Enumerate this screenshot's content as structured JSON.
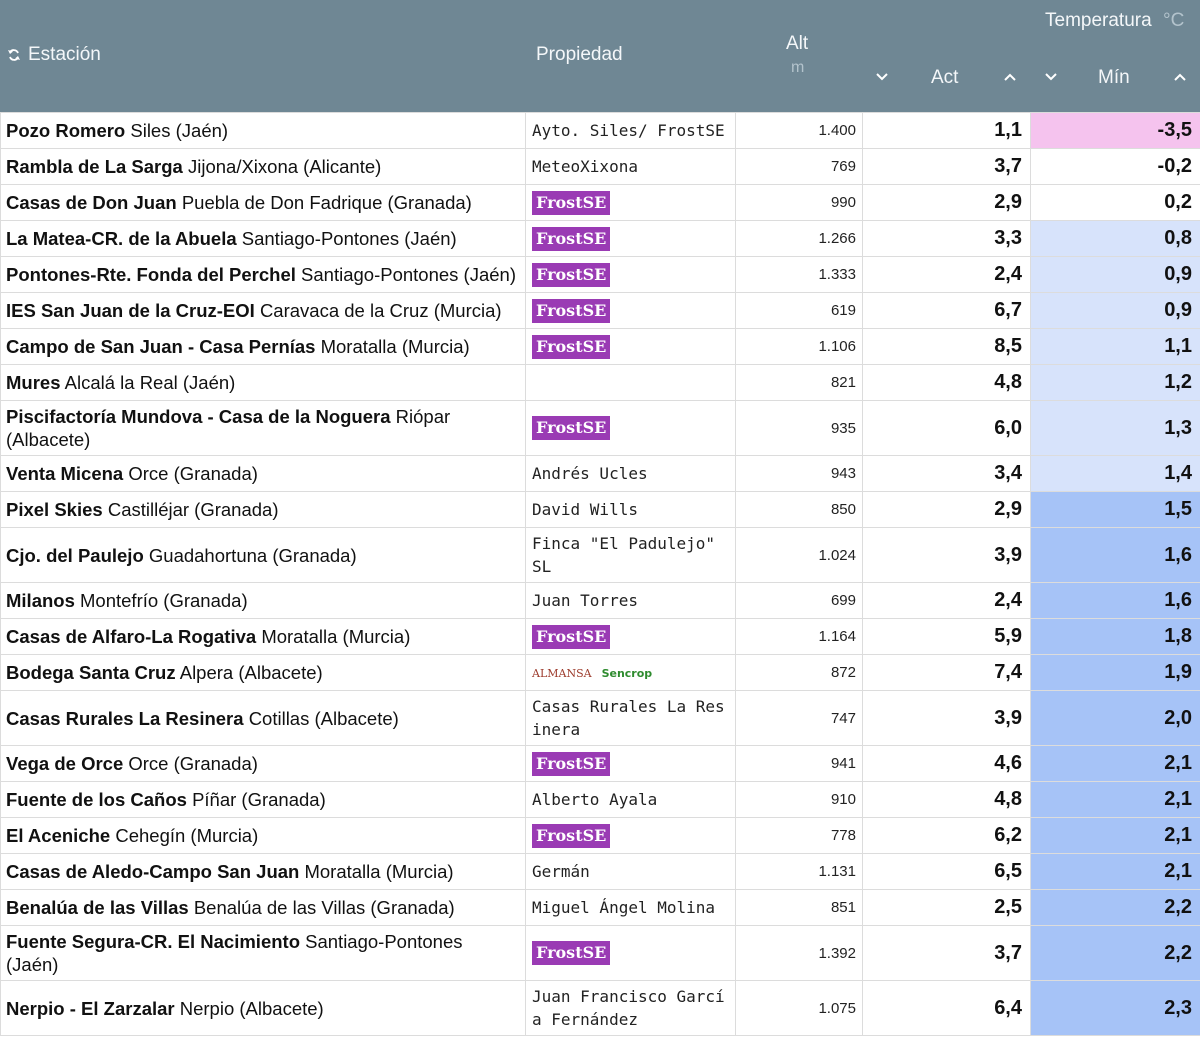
{
  "header": {
    "station": "Estación",
    "property": "Propiedad",
    "alt": "Alt",
    "alt_unit": "m",
    "temperature": "Temperatura",
    "temperature_unit": "°C",
    "act": "Act",
    "min": "Mín"
  },
  "table": {
    "rows": [
      {
        "name": "Pozo Romero",
        "location": "Siles (Jaén)",
        "property": {
          "text": "Ayto. Siles/ FrostSE"
        },
        "alt": "1.400",
        "act": "1,1",
        "min": "-3,5",
        "min_color": "#f5c3ee"
      },
      {
        "name": "Rambla de La Sarga",
        "location": "Jijona/Xixona (Alicante)",
        "property": {
          "text": "MeteoXixona"
        },
        "alt": "769",
        "act": "3,7",
        "min": "-0,2",
        "min_color": "#ffffff"
      },
      {
        "name": "Casas de Don Juan",
        "location": "Puebla de Don Fadrique (Granada)",
        "property": {
          "logos": [
            "FrostSE"
          ]
        },
        "alt": "990",
        "act": "2,9",
        "min": "0,2",
        "min_color": "#ffffff"
      },
      {
        "name": "La Matea-CR. de la Abuela",
        "location": "Santiago-Pontones (Jaén)",
        "property": {
          "logos": [
            "FrostSE"
          ]
        },
        "alt": "1.266",
        "act": "3,3",
        "min": "0,8",
        "min_color": "#d7e3fb"
      },
      {
        "name": "Pontones-Rte. Fonda del Perchel",
        "location": "Santiago-Pontones (Jaén)",
        "property": {
          "logos": [
            "FrostSE"
          ]
        },
        "alt": "1.333",
        "act": "2,4",
        "min": "0,9",
        "min_color": "#d7e3fb"
      },
      {
        "name": "IES San Juan de la Cruz-EOI",
        "location": "Caravaca de la Cruz (Murcia)",
        "property": {
          "logos": [
            "FrostSE"
          ]
        },
        "alt": "619",
        "act": "6,7",
        "min": "0,9",
        "min_color": "#d7e3fb"
      },
      {
        "name": "Campo de San Juan - Casa Pernías",
        "location": "Moratalla (Murcia)",
        "property": {
          "logos": [
            "FrostSE"
          ]
        },
        "alt": "1.106",
        "act": "8,5",
        "min": "1,1",
        "min_color": "#d7e3fb"
      },
      {
        "name": "Mures",
        "location": "Alcalá la Real (Jaén)",
        "property": null,
        "alt": "821",
        "act": "4,8",
        "min": "1,2",
        "min_color": "#d7e3fb"
      },
      {
        "name": "Piscifactoría Mundova - Casa de la Noguera",
        "location": "Riópar (Albacete)",
        "property": {
          "logos": [
            "FrostSE"
          ]
        },
        "alt": "935",
        "act": "6,0",
        "min": "1,3",
        "min_color": "#d7e3fb"
      },
      {
        "name": "Venta Micena",
        "location": "Orce (Granada)",
        "property": {
          "text": "Andrés Ucles"
        },
        "alt": "943",
        "act": "3,4",
        "min": "1,4",
        "min_color": "#d7e3fb"
      },
      {
        "name": "Pixel Skies",
        "location": "Castilléjar (Granada)",
        "property": {
          "text": "David Wills"
        },
        "alt": "850",
        "act": "2,9",
        "min": "1,5",
        "min_color": "#a6c3f7"
      },
      {
        "name": "Cjo. del Paulejo",
        "location": "Guadahortuna (Granada)",
        "property": {
          "text": "Finca \"El Padulejo\" SL"
        },
        "alt": "1.024",
        "act": "3,9",
        "min": "1,6",
        "min_color": "#a6c3f7"
      },
      {
        "name": "Milanos",
        "location": "Montefrío (Granada)",
        "property": {
          "text": "Juan Torres"
        },
        "alt": "699",
        "act": "2,4",
        "min": "1,6",
        "min_color": "#a6c3f7"
      },
      {
        "name": "Casas de Alfaro-La Rogativa",
        "location": "Moratalla (Murcia)",
        "property": {
          "logos": [
            "FrostSE"
          ]
        },
        "alt": "1.164",
        "act": "5,9",
        "min": "1,8",
        "min_color": "#a6c3f7"
      },
      {
        "name": "Bodega Santa Cruz",
        "location": "Alpera (Albacete)",
        "property": {
          "logos": [
            "ALMANSA",
            "Sencrop"
          ]
        },
        "alt": "872",
        "act": "7,4",
        "min": "1,9",
        "min_color": "#a6c3f7"
      },
      {
        "name": "Casas Rurales La Resinera",
        "location": "Cotillas (Albacete)",
        "property": {
          "text": "Casas Rurales La Resinera"
        },
        "alt": "747",
        "act": "3,9",
        "min": "2,0",
        "min_color": "#a6c3f7"
      },
      {
        "name": "Vega de Orce",
        "location": "Orce (Granada)",
        "property": {
          "logos": [
            "FrostSE"
          ]
        },
        "alt": "941",
        "act": "4,6",
        "min": "2,1",
        "min_color": "#a6c3f7"
      },
      {
        "name": "Fuente de los Caños",
        "location": "Píñar (Granada)",
        "property": {
          "text": "Alberto Ayala"
        },
        "alt": "910",
        "act": "4,8",
        "min": "2,1",
        "min_color": "#a6c3f7"
      },
      {
        "name": "El Aceniche",
        "location": "Cehegín (Murcia)",
        "property": {
          "logos": [
            "FrostSE"
          ]
        },
        "alt": "778",
        "act": "6,2",
        "min": "2,1",
        "min_color": "#a6c3f7"
      },
      {
        "name": "Casas de Aledo-Campo San Juan",
        "location": "Moratalla (Murcia)",
        "property": {
          "text": "Germán"
        },
        "alt": "1.131",
        "act": "6,5",
        "min": "2,1",
        "min_color": "#a6c3f7"
      },
      {
        "name": "Benalúa de las Villas",
        "location": "Benalúa de las Villas (Granada)",
        "property": {
          "text": "Miguel Ángel Molina"
        },
        "alt": "851",
        "act": "2,5",
        "min": "2,2",
        "min_color": "#a6c3f7"
      },
      {
        "name": "Fuente Segura-CR. El Nacimiento",
        "location": "Santiago-Pontones (Jaén)",
        "property": {
          "logos": [
            "FrostSE"
          ]
        },
        "alt": "1.392",
        "act": "3,7",
        "min": "2,2",
        "min_color": "#a6c3f7"
      },
      {
        "name": "Nerpio - El Zarzalar",
        "location": "Nerpio (Albacete)",
        "property": {
          "text": "Juan Francisco García Fernández"
        },
        "alt": "1.075",
        "act": "6,4",
        "min": "2,3",
        "min_color": "#a6c3f7"
      }
    ]
  }
}
